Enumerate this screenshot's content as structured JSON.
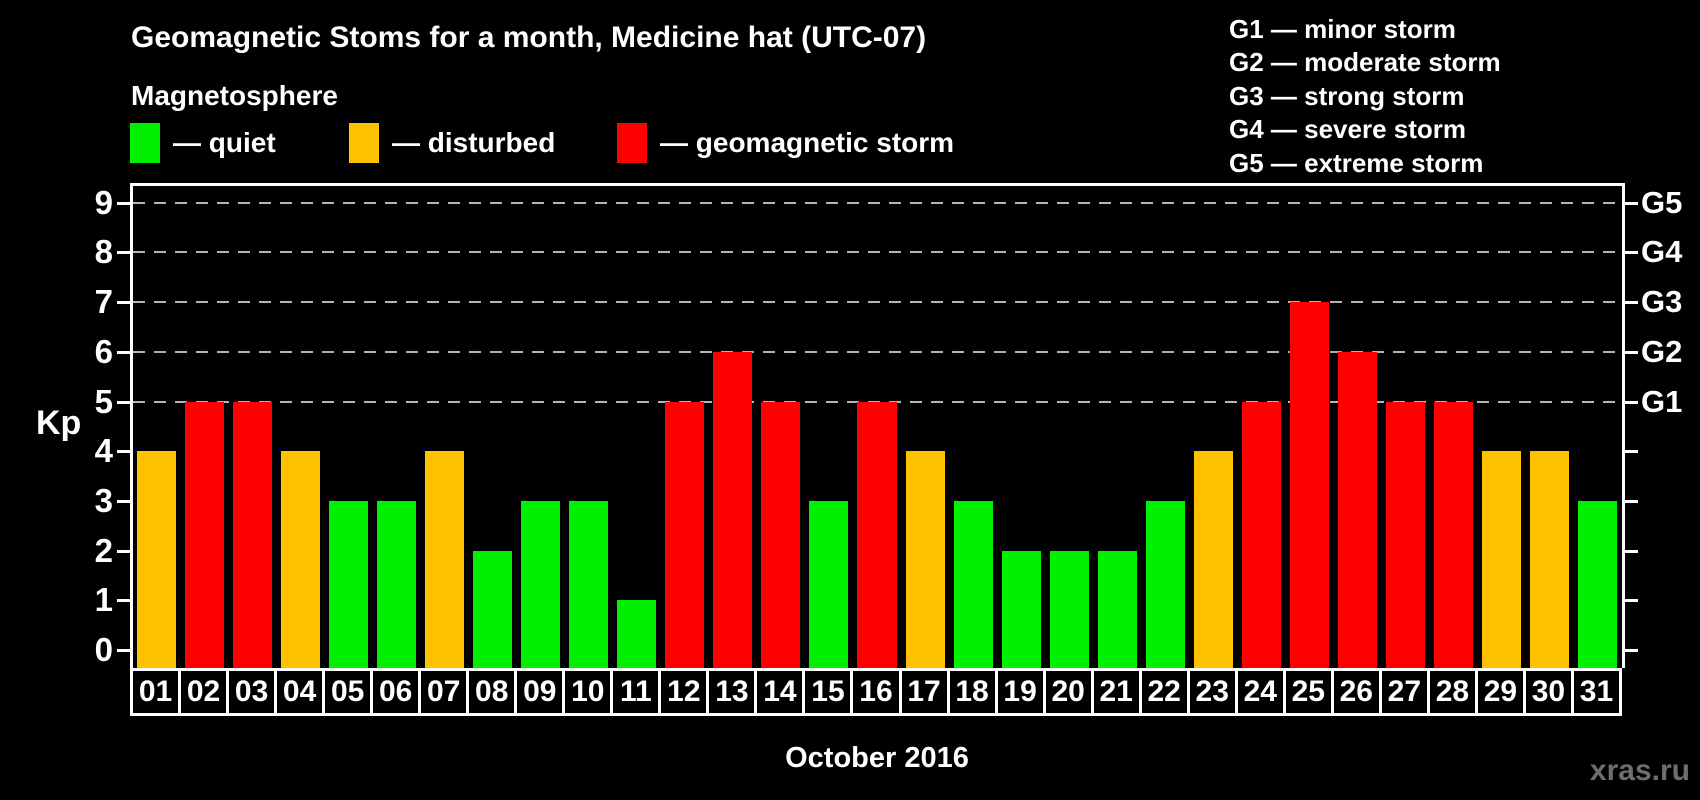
{
  "title": "Geomagnetic Stoms for a month, Medicine hat (UTC-07)",
  "subtitle": "Magnetosphere",
  "legend": {
    "items": [
      {
        "key": "quiet",
        "label": "— quiet",
        "color": "#00f000"
      },
      {
        "key": "disturbed",
        "label": "— disturbed",
        "color": "#ffc000"
      },
      {
        "key": "storm",
        "label": "— geomagnetic storm",
        "color": "#ff0000"
      }
    ]
  },
  "g_scale_legend": [
    {
      "code": "G1",
      "text": "G1 — minor storm"
    },
    {
      "code": "G2",
      "text": "G2 — moderate storm"
    },
    {
      "code": "G3",
      "text": "G3 — strong storm"
    },
    {
      "code": "G4",
      "text": "G4 — severe storm"
    },
    {
      "code": "G5",
      "text": "G5 — extreme storm"
    }
  ],
  "watermark": "xras.ru",
  "chart_data": {
    "type": "bar",
    "title": "Geomagnetic Stoms for a month, Medicine hat (UTC-07)",
    "xlabel": "October 2016",
    "ylabel": "Kp",
    "ylim": [
      0,
      9
    ],
    "yticks": [
      0,
      1,
      2,
      3,
      4,
      5,
      6,
      7,
      8,
      9
    ],
    "gridlines_at": [
      5,
      6,
      7,
      8,
      9
    ],
    "grid_style": "dashed horizontal lines at storm levels only",
    "right_axis_labels": [
      {
        "value": 5,
        "label": "G1"
      },
      {
        "value": 6,
        "label": "G2"
      },
      {
        "value": 7,
        "label": "G3"
      },
      {
        "value": 8,
        "label": "G4"
      },
      {
        "value": 9,
        "label": "G5"
      }
    ],
    "legend_position": "top-left",
    "categories": [
      "01",
      "02",
      "03",
      "04",
      "05",
      "06",
      "07",
      "08",
      "09",
      "10",
      "11",
      "12",
      "13",
      "14",
      "15",
      "16",
      "17",
      "18",
      "19",
      "20",
      "21",
      "22",
      "23",
      "24",
      "25",
      "26",
      "27",
      "28",
      "29",
      "30",
      "31"
    ],
    "values": [
      4,
      5,
      5,
      4,
      3,
      3,
      4,
      2,
      3,
      3,
      1,
      5,
      6,
      5,
      3,
      5,
      4,
      3,
      2,
      2,
      2,
      3,
      4,
      5,
      7,
      6,
      5,
      5,
      4,
      4,
      3
    ],
    "statuses": [
      "disturbed",
      "storm",
      "storm",
      "disturbed",
      "quiet",
      "quiet",
      "disturbed",
      "quiet",
      "quiet",
      "quiet",
      "quiet",
      "storm",
      "storm",
      "storm",
      "quiet",
      "storm",
      "disturbed",
      "quiet",
      "quiet",
      "quiet",
      "quiet",
      "quiet",
      "disturbed",
      "storm",
      "storm",
      "storm",
      "storm",
      "storm",
      "disturbed",
      "disturbed",
      "quiet"
    ],
    "color_map": {
      "quiet": "#00f000",
      "disturbed": "#ffc000",
      "storm": "#ff0000"
    },
    "background": "#000000",
    "gridline_color": "#b4b4b4"
  }
}
